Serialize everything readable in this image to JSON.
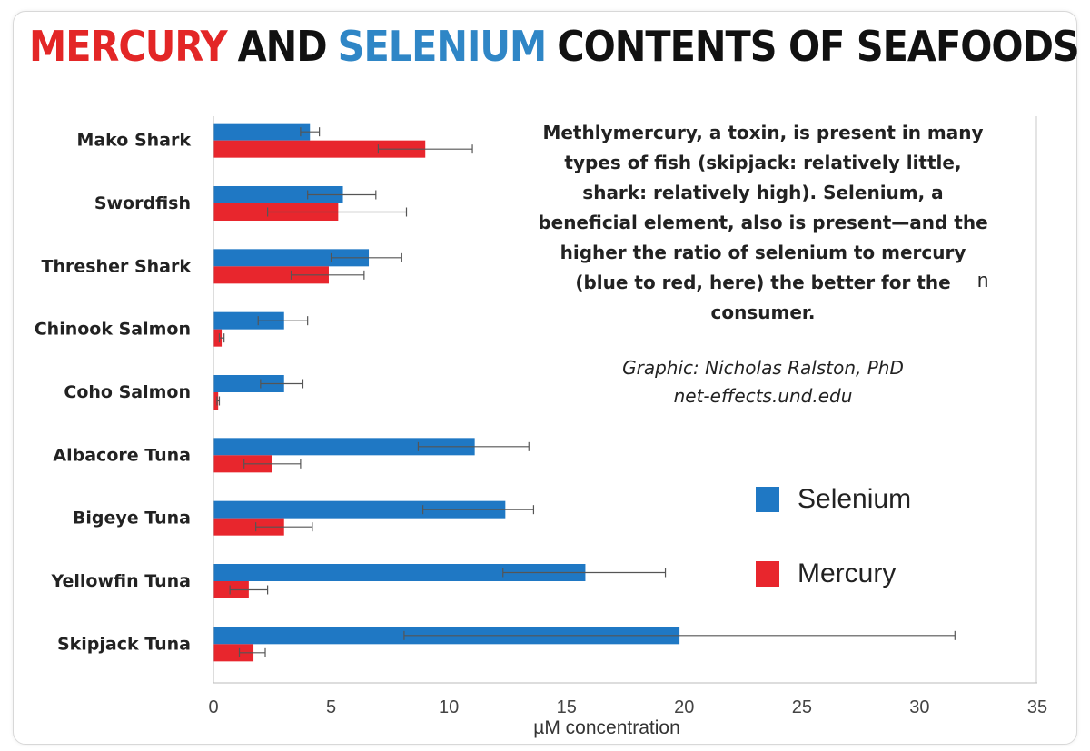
{
  "title": {
    "part1": "MERCURY",
    "part2": "AND",
    "part3": "SELENIUM",
    "part4": "CONTENTS OF SEAFOODS"
  },
  "note": "Methlymercury, a toxin, is present in many types of fish (skipjack: relatively little, shark: relatively high). Selenium, a beneficial element, also is present—and the higher the ratio of selenium to mercury (blue to red, here) the better for the consumer.",
  "credit": {
    "line1": "Graphic: Nicholas Ralston, PhD",
    "line2": "net-effects.und.edu"
  },
  "stray_glyph": "n",
  "colors": {
    "selenium": "#1f78c4",
    "mercury": "#e8262d",
    "title_red": "#e32626",
    "title_blue": "#2f86c6"
  },
  "chart_data": {
    "type": "bar",
    "orientation": "horizontal",
    "categories": [
      "Mako Shark",
      "Swordfish",
      "Thresher Shark",
      "Chinook Salmon",
      "Coho Salmon",
      "Albacore Tuna",
      "Bigeye Tuna",
      "Yellowfin Tuna",
      "Skipjack Tuna"
    ],
    "series": [
      {
        "name": "Selenium",
        "color": "#1f78c4",
        "values": [
          4.1,
          5.5,
          6.6,
          3.0,
          3.0,
          11.1,
          12.4,
          15.8,
          19.8
        ],
        "error_low": [
          3.7,
          4.0,
          5.0,
          1.9,
          2.0,
          8.7,
          8.9,
          12.3,
          8.1
        ],
        "error_high": [
          4.5,
          6.9,
          8.0,
          4.0,
          3.8,
          13.4,
          13.6,
          19.2,
          31.5
        ]
      },
      {
        "name": "Mercury",
        "color": "#e8262d",
        "values": [
          9.0,
          5.3,
          4.9,
          0.35,
          0.2,
          2.5,
          3.0,
          1.5,
          1.7
        ],
        "error_low": [
          7.0,
          2.3,
          3.3,
          0.25,
          0.15,
          1.3,
          1.8,
          0.7,
          1.1
        ],
        "error_high": [
          11.0,
          8.2,
          6.4,
          0.45,
          0.25,
          3.7,
          4.2,
          2.3,
          2.2
        ]
      }
    ],
    "xlim": [
      0,
      35
    ],
    "xticks": [
      "0",
      "5",
      "10",
      "15",
      "20",
      "25",
      "30",
      "35"
    ],
    "xlabel": "µM concentration",
    "ylabel": "",
    "grid": false,
    "legend": "right"
  }
}
